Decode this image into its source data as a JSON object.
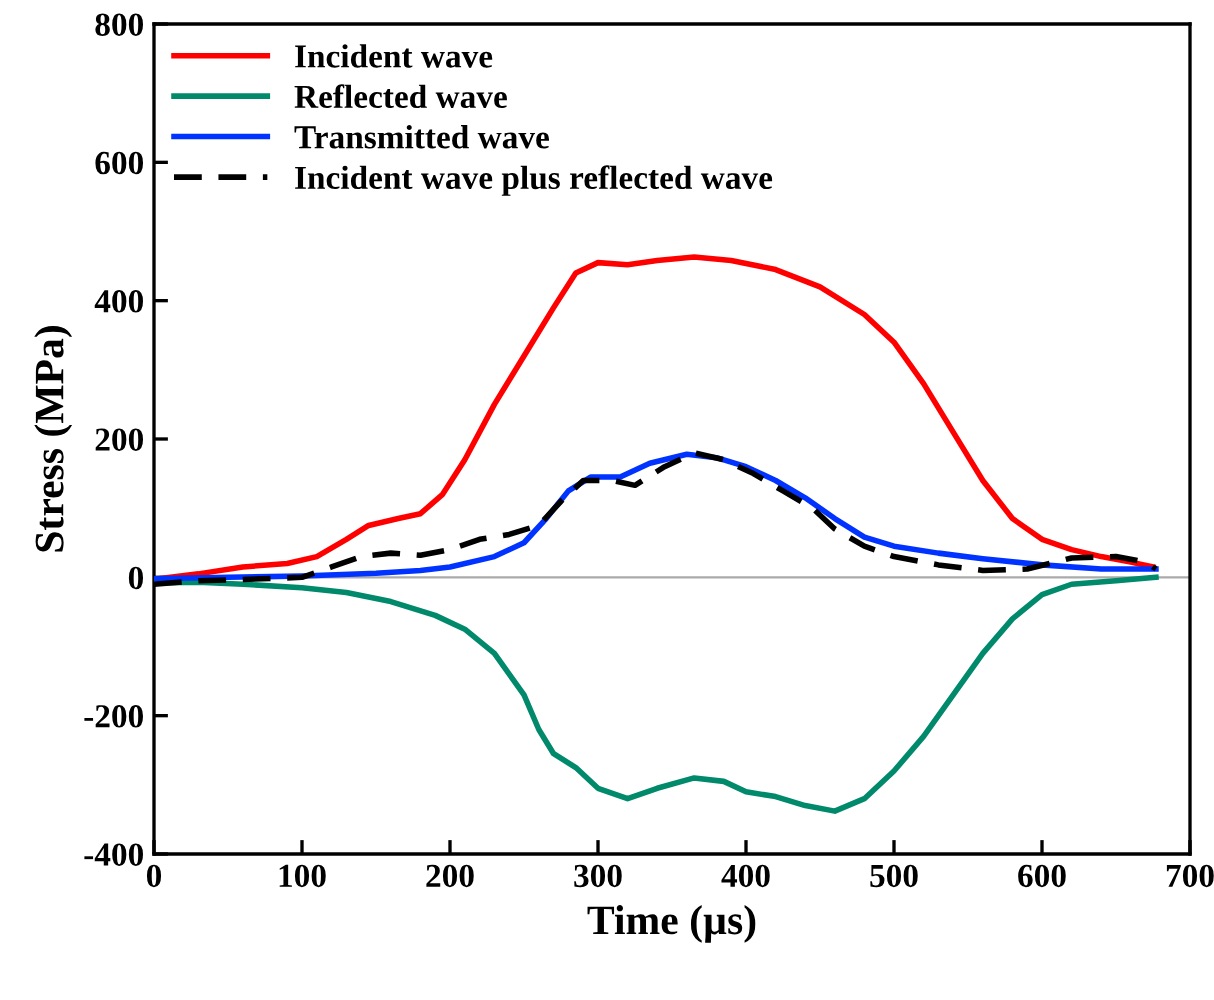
{
  "chart_data": {
    "type": "line",
    "xlabel": "Time (µs)",
    "ylabel": "Stress (MPa)",
    "xlim": [
      0,
      700
    ],
    "ylim": [
      -400,
      800
    ],
    "xticks": [
      0,
      100,
      200,
      300,
      400,
      500,
      600,
      700
    ],
    "yticks": [
      -400,
      -200,
      0,
      200,
      400,
      600,
      800
    ],
    "grid": false,
    "legend": "top left",
    "ref_lines": [
      {
        "axis": "y",
        "value": 0,
        "color": "#aaaaaa"
      }
    ],
    "series": [
      {
        "name": "Incident wave",
        "color": "#ff0000",
        "line_style": "solid",
        "x": [
          0,
          30,
          60,
          90,
          110,
          130,
          145,
          165,
          180,
          195,
          210,
          230,
          250,
          270,
          285,
          300,
          320,
          340,
          365,
          390,
          420,
          450,
          480,
          500,
          520,
          540,
          560,
          580,
          600,
          620,
          640,
          660,
          675
        ],
        "values": [
          -3,
          5,
          15,
          20,
          30,
          55,
          75,
          85,
          92,
          120,
          170,
          250,
          320,
          390,
          440,
          455,
          452,
          458,
          463,
          458,
          445,
          420,
          380,
          340,
          280,
          210,
          140,
          85,
          55,
          40,
          30,
          22,
          15
        ]
      },
      {
        "name": "Reflected wave",
        "color": "#00896b",
        "line_style": "solid",
        "x": [
          0,
          30,
          60,
          100,
          130,
          160,
          190,
          210,
          230,
          250,
          260,
          270,
          285,
          300,
          320,
          340,
          365,
          385,
          400,
          420,
          440,
          460,
          480,
          500,
          520,
          540,
          560,
          580,
          600,
          620,
          650,
          677
        ],
        "values": [
          -8,
          -7,
          -10,
          -15,
          -22,
          -35,
          -55,
          -75,
          -110,
          -170,
          -220,
          -255,
          -275,
          -305,
          -320,
          -305,
          -290,
          -295,
          -310,
          -317,
          -330,
          -338,
          -320,
          -280,
          -230,
          -170,
          -110,
          -60,
          -25,
          -10,
          -5,
          0
        ]
      },
      {
        "name": "Transmitted wave",
        "color": "#0033ff",
        "line_style": "solid",
        "x": [
          0,
          50,
          100,
          150,
          180,
          200,
          230,
          250,
          265,
          280,
          295,
          315,
          335,
          360,
          380,
          400,
          420,
          440,
          460,
          480,
          500,
          530,
          560,
          600,
          640,
          677
        ],
        "values": [
          -2,
          0,
          2,
          6,
          10,
          15,
          30,
          50,
          85,
          125,
          145,
          145,
          165,
          178,
          173,
          160,
          140,
          115,
          85,
          58,
          45,
          35,
          27,
          18,
          12,
          12
        ]
      },
      {
        "name": "Incident wave plus reflected wave",
        "color": "#000000",
        "line_style": "dashed",
        "x": [
          0,
          30,
          60,
          100,
          120,
          140,
          160,
          180,
          200,
          220,
          240,
          260,
          275,
          290,
          310,
          325,
          345,
          365,
          385,
          405,
          425,
          445,
          460,
          480,
          500,
          530,
          560,
          590,
          620,
          650,
          670,
          677
        ],
        "values": [
          -10,
          -5,
          -3,
          0,
          15,
          30,
          35,
          32,
          40,
          55,
          62,
          75,
          110,
          140,
          140,
          133,
          160,
          180,
          170,
          150,
          125,
          100,
          70,
          45,
          30,
          18,
          10,
          12,
          28,
          30,
          22,
          12
        ]
      }
    ]
  }
}
